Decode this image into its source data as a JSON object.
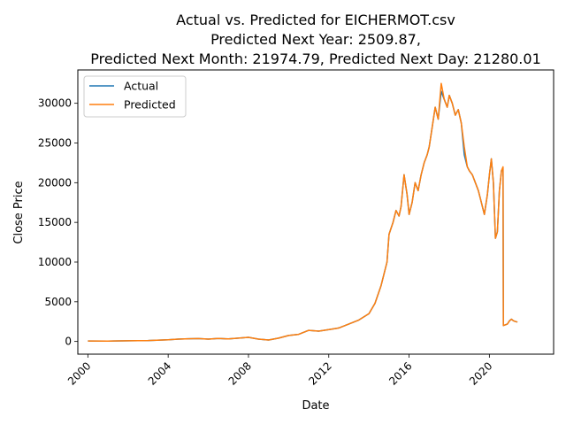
{
  "chart_data": {
    "type": "line",
    "title_lines": [
      "Actual vs. Predicted for EICHERMOT.csv",
      "Predicted Next Year: 2509.87,",
      "Predicted Next Month: 21974.79, Predicted Next Day: 21280.01"
    ],
    "xlabel": "Date",
    "ylabel": "Close Price",
    "xlim": [
      1999.5,
      2023.2
    ],
    "ylim": [
      -1600,
      34200
    ],
    "x_ticks": [
      2000,
      2004,
      2008,
      2012,
      2016,
      2020
    ],
    "x_tick_labels": [
      "2000",
      "2004",
      "2008",
      "2012",
      "2016",
      "2020"
    ],
    "y_ticks": [
      0,
      5000,
      10000,
      15000,
      20000,
      25000,
      30000
    ],
    "y_tick_labels": [
      "0",
      "5000",
      "10000",
      "15000",
      "20000",
      "25000",
      "30000"
    ],
    "legend_position": "upper-left",
    "series": [
      {
        "name": "Actual",
        "color": "#1f77b4",
        "x": [
          2000.0,
          2001.0,
          2002.0,
          2003.0,
          2004.0,
          2004.5,
          2005.0,
          2005.5,
          2006.0,
          2006.5,
          2007.0,
          2007.5,
          2008.0,
          2008.5,
          2009.0,
          2009.5,
          2010.0,
          2010.5,
          2011.0,
          2011.5,
          2012.0,
          2012.5,
          2013.0,
          2013.5,
          2014.0,
          2014.3,
          2014.6,
          2014.9,
          2015.0,
          2015.2,
          2015.35,
          2015.5,
          2015.6,
          2015.75,
          2015.9,
          2016.0,
          2016.15,
          2016.3,
          2016.45,
          2016.6,
          2016.75,
          2016.9,
          2017.0,
          2017.15,
          2017.3,
          2017.45,
          2017.6,
          2017.75,
          2017.9,
          2018.0,
          2018.15,
          2018.3,
          2018.45,
          2018.6,
          2018.75,
          2018.9,
          2019.0,
          2019.15,
          2019.3,
          2019.45,
          2019.6,
          2019.75,
          2019.9,
          2020.0,
          2020.1,
          2020.2,
          2020.3,
          2020.4,
          2020.5,
          2020.6,
          2020.68,
          2020.7,
          2020.8,
          2020.9,
          2021.0,
          2021.1,
          2021.2,
          2021.3,
          2021.4
        ],
        "y": [
          60,
          50,
          80,
          120,
          220,
          300,
          340,
          360,
          300,
          380,
          320,
          420,
          520,
          300,
          180,
          420,
          750,
          900,
          1400,
          1300,
          1500,
          1700,
          2200,
          2700,
          3500,
          4800,
          7000,
          10000,
          13500,
          15000,
          16500,
          15800,
          17000,
          21000,
          18500,
          16000,
          17500,
          20000,
          19000,
          21000,
          22500,
          23500,
          24500,
          27000,
          29500,
          28000,
          31500,
          30500,
          29500,
          31000,
          30000,
          28500,
          29200,
          27500,
          23500,
          22000,
          21500,
          21000,
          20000,
          19000,
          17500,
          16000,
          18500,
          21000,
          23000,
          20000,
          13000,
          13800,
          19000,
          21500,
          21800,
          2000,
          2100,
          2200,
          2600,
          2800,
          2600,
          2500,
          2450
        ]
      },
      {
        "name": "Predicted",
        "color": "#ff7f0e",
        "x": [
          2000.0,
          2001.0,
          2002.0,
          2003.0,
          2004.0,
          2004.5,
          2005.0,
          2005.5,
          2006.0,
          2006.5,
          2007.0,
          2007.5,
          2008.0,
          2008.5,
          2009.0,
          2009.5,
          2010.0,
          2010.5,
          2011.0,
          2011.5,
          2012.0,
          2012.5,
          2013.0,
          2013.5,
          2014.0,
          2014.3,
          2014.6,
          2014.9,
          2015.0,
          2015.2,
          2015.35,
          2015.5,
          2015.6,
          2015.75,
          2015.9,
          2016.0,
          2016.15,
          2016.3,
          2016.45,
          2016.6,
          2016.75,
          2016.9,
          2017.0,
          2017.15,
          2017.3,
          2017.45,
          2017.6,
          2017.75,
          2017.9,
          2018.0,
          2018.15,
          2018.3,
          2018.45,
          2018.6,
          2018.75,
          2018.9,
          2019.0,
          2019.15,
          2019.3,
          2019.45,
          2019.6,
          2019.75,
          2019.9,
          2020.0,
          2020.1,
          2020.2,
          2020.3,
          2020.4,
          2020.5,
          2020.6,
          2020.68,
          2020.7,
          2020.8,
          2020.9,
          2021.0,
          2021.1,
          2021.2,
          2021.3,
          2021.4
        ],
        "y": [
          60,
          50,
          80,
          120,
          220,
          300,
          340,
          360,
          300,
          380,
          320,
          420,
          520,
          300,
          180,
          420,
          750,
          900,
          1400,
          1300,
          1500,
          1700,
          2200,
          2700,
          3500,
          4800,
          7000,
          10000,
          13500,
          15000,
          16500,
          15800,
          17000,
          21000,
          18500,
          16000,
          17500,
          20000,
          19000,
          21000,
          22500,
          23500,
          24500,
          27000,
          29500,
          28000,
          32500,
          30500,
          29500,
          31000,
          30000,
          28500,
          29200,
          27500,
          24500,
          22000,
          21500,
          21000,
          20000,
          19000,
          17500,
          16000,
          18500,
          21000,
          23000,
          20000,
          13000,
          13800,
          19000,
          21500,
          22000,
          2000,
          2100,
          2200,
          2600,
          2800,
          2600,
          2500,
          2450
        ]
      }
    ]
  }
}
